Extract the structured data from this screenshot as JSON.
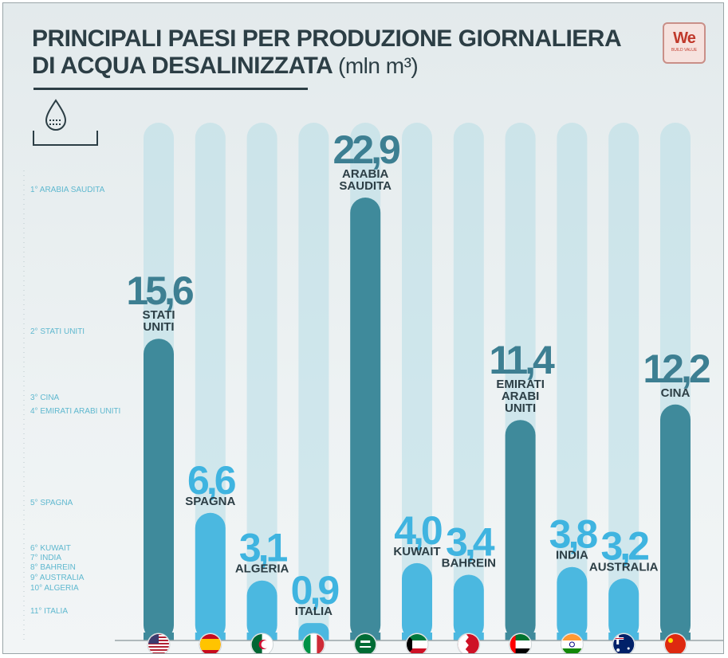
{
  "title_line1": "PRINCIPALI PAESI PER PRODUZIONE GIORNALIERA",
  "title_line2": "DI ACQUA DESALINIZZATA",
  "title_unit": "(mln m³)",
  "logo": {
    "text": "We",
    "sub": "BUILD VALUE"
  },
  "icon": "water-drop-icon",
  "colors": {
    "dark_bar": "#3f8a9b",
    "light_bar": "#4bb8e0",
    "track": "#b7dde6",
    "dark_value": "#3d7f92",
    "light_value": "#3fb4e0",
    "rank_text": "#5fb8cf"
  },
  "chart_data": {
    "type": "bar",
    "title": "PRINCIPALI PAESI PER PRODUZIONE GIORNALIERA DI ACQUA DESALINIZZATA (mln m³)",
    "categories": [
      "STATI UNITI",
      "SPAGNA",
      "ALGERIA",
      "ITALIA",
      "ARABIA SAUDITA",
      "KUWAIT",
      "BAHREIN",
      "EMIRATI ARABI UNITI",
      "INDIA",
      "AUSTRALIA",
      "CINA"
    ],
    "values": [
      15.6,
      6.6,
      3.1,
      0.9,
      22.9,
      4.0,
      3.4,
      11.4,
      3.8,
      3.2,
      12.2
    ],
    "value_labels": [
      "15,6",
      "6,6",
      "3,1",
      "0,9",
      "22,9",
      "4,0",
      "3,4",
      "11,4",
      "3,8",
      "3,2",
      "12,2"
    ],
    "name_lines": [
      [
        "STATI",
        "UNITI"
      ],
      [
        "SPAGNA"
      ],
      [
        "ALGERIA"
      ],
      [
        "ITALIA"
      ],
      [
        "ARABIA",
        "SAUDITA"
      ],
      [
        "KUWAIT"
      ],
      [
        "BAHREIN"
      ],
      [
        "EMIRATI",
        "ARABI",
        "UNITI"
      ],
      [
        "INDIA"
      ],
      [
        "AUSTRALIA"
      ],
      [
        "CINA"
      ]
    ],
    "highlight": [
      true,
      false,
      false,
      false,
      true,
      false,
      false,
      true,
      false,
      false,
      true
    ],
    "flags": [
      "us-flag-icon",
      "spain-flag-icon",
      "algeria-flag-icon",
      "italy-flag-icon",
      "saudi-arabia-flag-icon",
      "kuwait-flag-icon",
      "bahrain-flag-icon",
      "uae-flag-icon",
      "india-flag-icon",
      "australia-flag-icon",
      "china-flag-icon"
    ],
    "ranking": [
      {
        "label": "1° ARABIA SAUDITA",
        "value": 22.9
      },
      {
        "label": "2° STATI UNITI",
        "value": 15.6
      },
      {
        "label": "3° CINA",
        "value": 12.2
      },
      {
        "label": "4° EMIRATI ARABI UNITI",
        "value": 11.4
      },
      {
        "label": "5° SPAGNA",
        "value": 6.6
      },
      {
        "label": "6° KUWAIT",
        "value": 4.0
      },
      {
        "label": "7° INDIA",
        "value": 3.8
      },
      {
        "label": "8° BAHREIN",
        "value": 3.4
      },
      {
        "label": "9° AUSTRALIA",
        "value": 3.2
      },
      {
        "label": "10° ALGERIA",
        "value": 3.1
      },
      {
        "label": "11° ITALIA",
        "value": 0.9
      }
    ],
    "ylim": [
      0,
      25
    ],
    "grid": false,
    "legend": "none"
  }
}
